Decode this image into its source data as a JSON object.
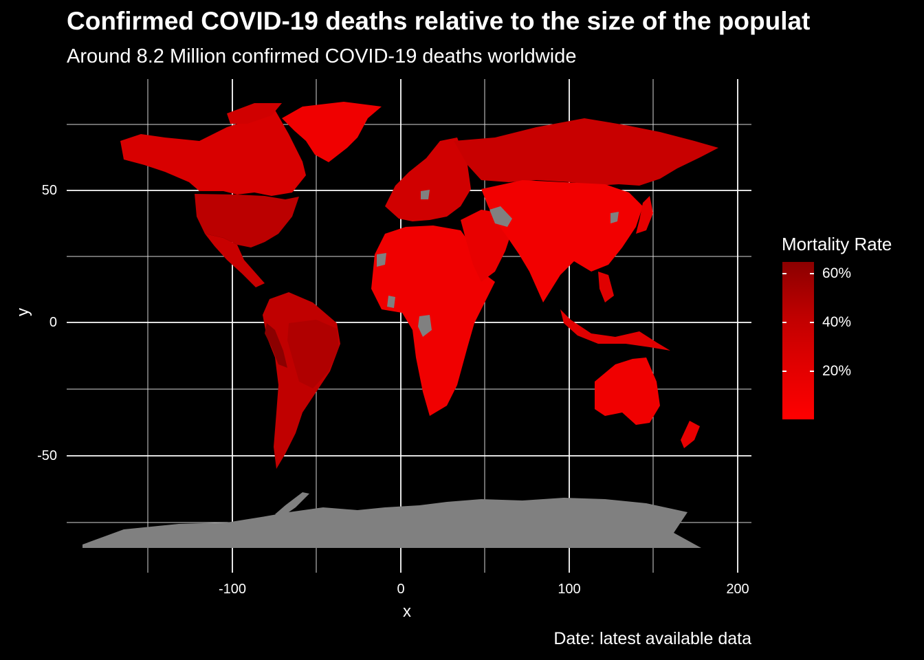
{
  "title": "Confirmed COVID-19 deaths relative to the size of the populat",
  "subtitle": "Around 8.2 Million confirmed COVID-19 deaths worldwide",
  "caption": "Date: latest available data",
  "colors": {
    "background": "#000000",
    "grid": "#ffffff",
    "low": "#ff0000",
    "high": "#8b0000",
    "missing": "#808080"
  },
  "chart_data": {
    "type": "map",
    "xlabel": "x",
    "ylabel": "y",
    "x_ticks": [
      "-100",
      "0",
      "100",
      "200"
    ],
    "y_ticks": [
      "50",
      "0",
      "-50"
    ],
    "xlim": [
      -190,
      205
    ],
    "ylim": [
      -85,
      85
    ],
    "grid": true,
    "legend": {
      "title": "Mortality Rate",
      "position": "right",
      "labels": [
        "60%",
        "40%",
        "20%"
      ],
      "range": [
        "0%",
        "65%"
      ]
    }
  }
}
